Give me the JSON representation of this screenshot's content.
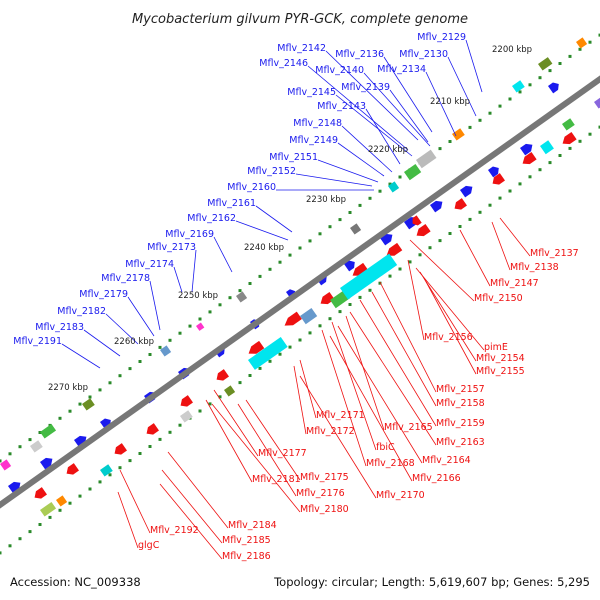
{
  "title": "Mycobacterium gilvum PYR-GCK, complete genome",
  "footer": {
    "accession": "Accession: NC_009338",
    "summary": "Topology: circular; Length: 5,619,607 bp; Genes: 5,295"
  },
  "colors": {
    "forward": "#1a1aee",
    "reverse": "#ee1111",
    "backbone": "#777777",
    "tick_dots": "#2a8a2a"
  },
  "kbp_labels": [
    "2200 kbp",
    "2210 kbp",
    "2220 kbp",
    "2230 kbp",
    "2240 kbp",
    "2250 kbp",
    "2260 kbp",
    "2270 kbp"
  ],
  "blue_labels": [
    "Mflv_2129",
    "Mflv_2130",
    "Mflv_2134",
    "Mflv_2136",
    "Mflv_2142",
    "Mflv_2146",
    "Mflv_2140",
    "Mflv_2139",
    "Mflv_2145",
    "Mflv_2143",
    "Mflv_2148",
    "Mflv_2149",
    "Mflv_2151",
    "Mflv_2152",
    "Mflv_2160",
    "Mflv_2161",
    "Mflv_2162",
    "Mflv_2169",
    "Mflv_2173",
    "Mflv_2174",
    "Mflv_2178",
    "Mflv_2179",
    "Mflv_2182",
    "Mflv_2183",
    "Mflv_2191"
  ],
  "red_labels": [
    "Mflv_2137",
    "Mflv_2138",
    "Mflv_2147",
    "Mflv_2150",
    "Mflv_2156",
    "pimE",
    "Mflv_2154",
    "Mflv_2155",
    "Mflv_2157",
    "Mflv_2158",
    "Mflv_2159",
    "Mflv_2163",
    "Mflv_2171",
    "Mflv_2172",
    "Mflv_2165",
    "fbiC",
    "Mflv_2168",
    "Mflv_2164",
    "Mflv_2166",
    "Mflv_2177",
    "Mflv_2175",
    "Mflv_2176",
    "Mflv_2170",
    "Mflv_2181",
    "Mflv_2180",
    "Mflv_2184",
    "Mflv_2192",
    "Mflv_2185",
    "glgC",
    "Mflv_2186"
  ]
}
